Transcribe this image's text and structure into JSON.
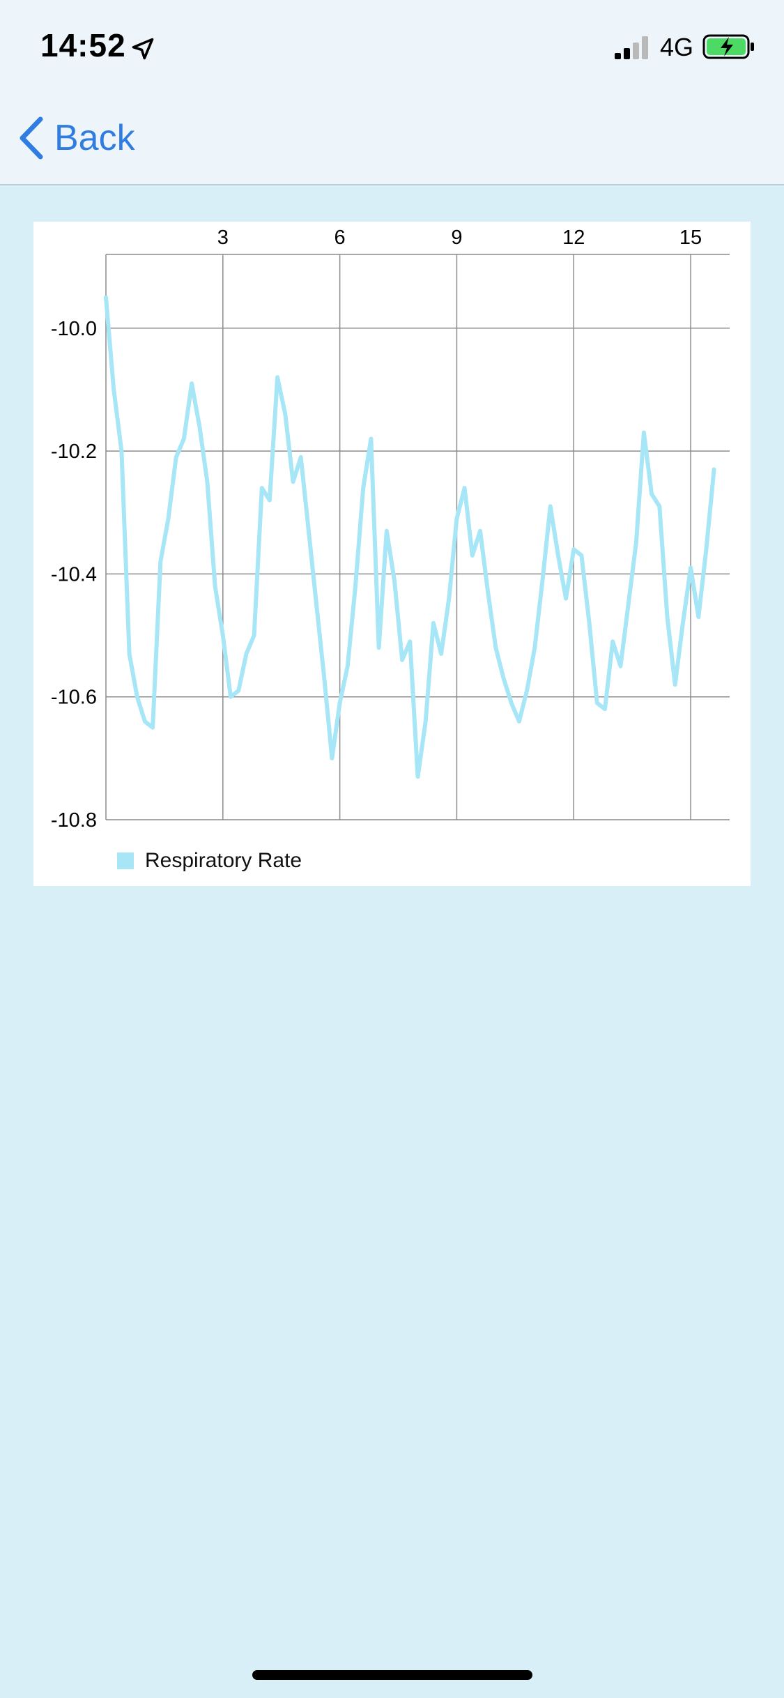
{
  "status_bar": {
    "time": "14:52",
    "network": "4G",
    "location_icon": "location-arrow-icon",
    "signal_icon": "cellular-signal-icon",
    "battery_icon": "battery-charging-icon",
    "battery_color": "#4cd964"
  },
  "nav": {
    "back_label": "Back",
    "back_icon": "chevron-left-icon",
    "accent_color": "#2f7de0"
  },
  "chart_data": {
    "type": "line",
    "title": "",
    "xlabel": "",
    "ylabel": "",
    "x_axis_position": "top",
    "xlim": [
      0,
      16
    ],
    "ylim": [
      -10.8,
      -9.88
    ],
    "x_ticks": [
      3,
      6,
      9,
      12,
      15
    ],
    "y_ticks": [
      -10.0,
      -10.2,
      -10.4,
      -10.6,
      -10.8
    ],
    "x_tick_labels": [
      "3",
      "6",
      "9",
      "12",
      "15"
    ],
    "y_tick_labels": [
      "-10.0",
      "-10.2",
      "-10.4",
      "-10.6",
      "-10.8"
    ],
    "grid": true,
    "legend_position": "bottom-left",
    "series": [
      {
        "name": "Respiratory Rate",
        "color": "#a6e6f7",
        "x": [
          0,
          0.2,
          0.4,
          0.6,
          0.8,
          1.0,
          1.2,
          1.4,
          1.6,
          1.8,
          2.0,
          2.2,
          2.4,
          2.6,
          2.8,
          3.0,
          3.2,
          3.4,
          3.6,
          3.8,
          4.0,
          4.2,
          4.4,
          4.6,
          4.8,
          5.0,
          5.2,
          5.4,
          5.6,
          5.8,
          6.0,
          6.2,
          6.4,
          6.6,
          6.8,
          7.0,
          7.2,
          7.4,
          7.6,
          7.8,
          8.0,
          8.2,
          8.4,
          8.6,
          8.8,
          9.0,
          9.2,
          9.4,
          9.6,
          9.8,
          10.0,
          10.2,
          10.4,
          10.6,
          10.8,
          11.0,
          11.2,
          11.4,
          11.6,
          11.8,
          12.0,
          12.2,
          12.4,
          12.6,
          12.8,
          13.0,
          13.2,
          13.4,
          13.6,
          13.8,
          14.0,
          14.2,
          14.4,
          14.6,
          14.8,
          15.0,
          15.2,
          15.4,
          15.6
        ],
        "values": [
          -9.95,
          -10.1,
          -10.2,
          -10.53,
          -10.6,
          -10.64,
          -10.65,
          -10.38,
          -10.31,
          -10.21,
          -10.18,
          -10.09,
          -10.16,
          -10.25,
          -10.42,
          -10.5,
          -10.6,
          -10.59,
          -10.53,
          -10.5,
          -10.26,
          -10.28,
          -10.08,
          -10.14,
          -10.25,
          -10.21,
          -10.33,
          -10.45,
          -10.57,
          -10.7,
          -10.61,
          -10.55,
          -10.42,
          -10.26,
          -10.18,
          -10.52,
          -10.33,
          -10.41,
          -10.54,
          -10.51,
          -10.73,
          -10.64,
          -10.48,
          -10.53,
          -10.44,
          -10.31,
          -10.26,
          -10.37,
          -10.33,
          -10.43,
          -10.52,
          -10.57,
          -10.61,
          -10.64,
          -10.59,
          -10.52,
          -10.41,
          -10.29,
          -10.37,
          -10.44,
          -10.36,
          -10.37,
          -10.48,
          -10.61,
          -10.62,
          -10.51,
          -10.55,
          -10.45,
          -10.35,
          -10.17,
          -10.27,
          -10.29,
          -10.47,
          -10.58,
          -10.48,
          -10.39,
          -10.47,
          -10.36,
          -10.23
        ]
      }
    ]
  }
}
